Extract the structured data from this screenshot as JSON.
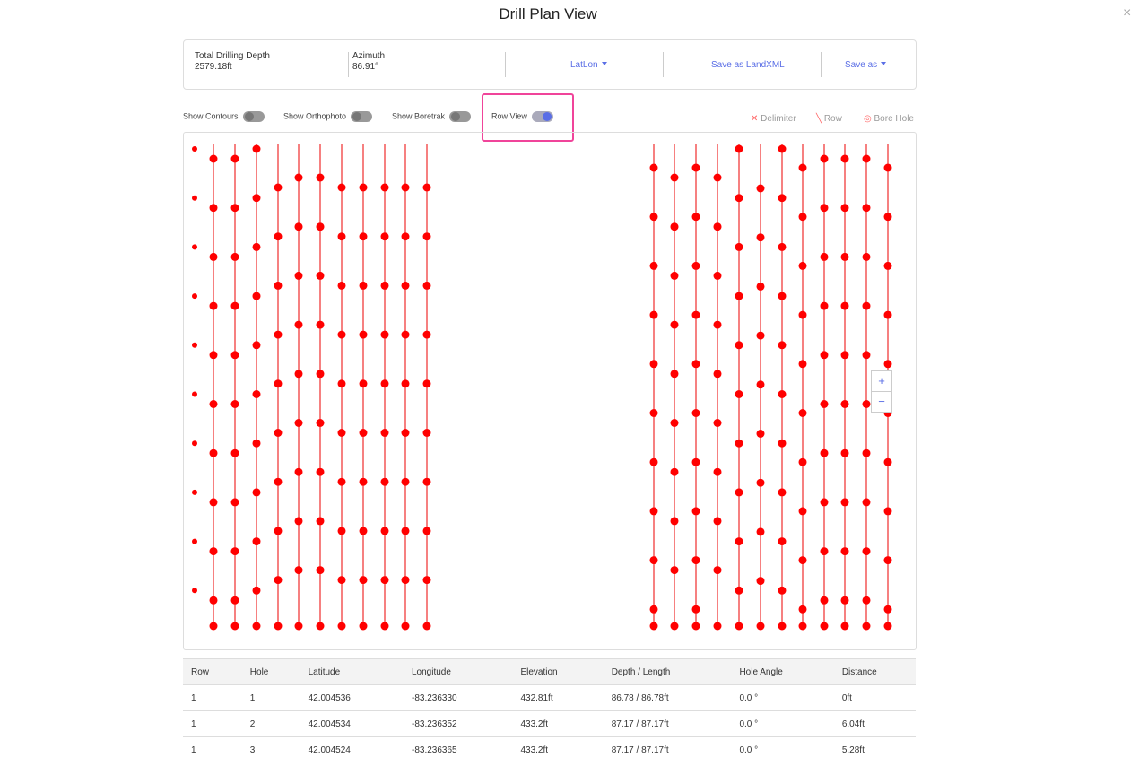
{
  "header": {
    "title": "Drill Plan View",
    "close": "×"
  },
  "summary": {
    "depth_label": "Total Drilling Depth",
    "depth_value": "2579.18ft",
    "azimuth_label": "Azimuth",
    "azimuth_value": "86.91°",
    "latlon": "LatLon",
    "landxml": "Save as LandXML",
    "save_as": "Save as"
  },
  "toggles": [
    {
      "label": "Show Contours",
      "on": false
    },
    {
      "label": "Show Orthophoto",
      "on": false
    },
    {
      "label": "Show Boretrak",
      "on": false
    },
    {
      "label": "Row View",
      "on": true
    }
  ],
  "legend": [
    "Delimiter",
    "Row",
    "Bore Hole"
  ],
  "zoom": [
    "+",
    "−"
  ],
  "table": {
    "headers": [
      "Row",
      "Hole",
      "Latitude",
      "Longitude",
      "Elevation",
      "Depth / Length",
      "Hole Angle",
      "Distance"
    ],
    "rows": [
      [
        "1",
        "1",
        "42.004536",
        "-83.236330",
        "432.81ft",
        "86.78 / 86.78ft",
        "0.0 °",
        "0ft"
      ],
      [
        "1",
        "2",
        "42.004534",
        "-83.236352",
        "433.2ft",
        "87.17 / 87.17ft",
        "0.0 °",
        "6.04ft"
      ],
      [
        "1",
        "3",
        "42.004524",
        "-83.236365",
        "433.2ft",
        "87.17 / 87.17ft",
        "0.0 °",
        "5.28ft"
      ]
    ]
  }
}
